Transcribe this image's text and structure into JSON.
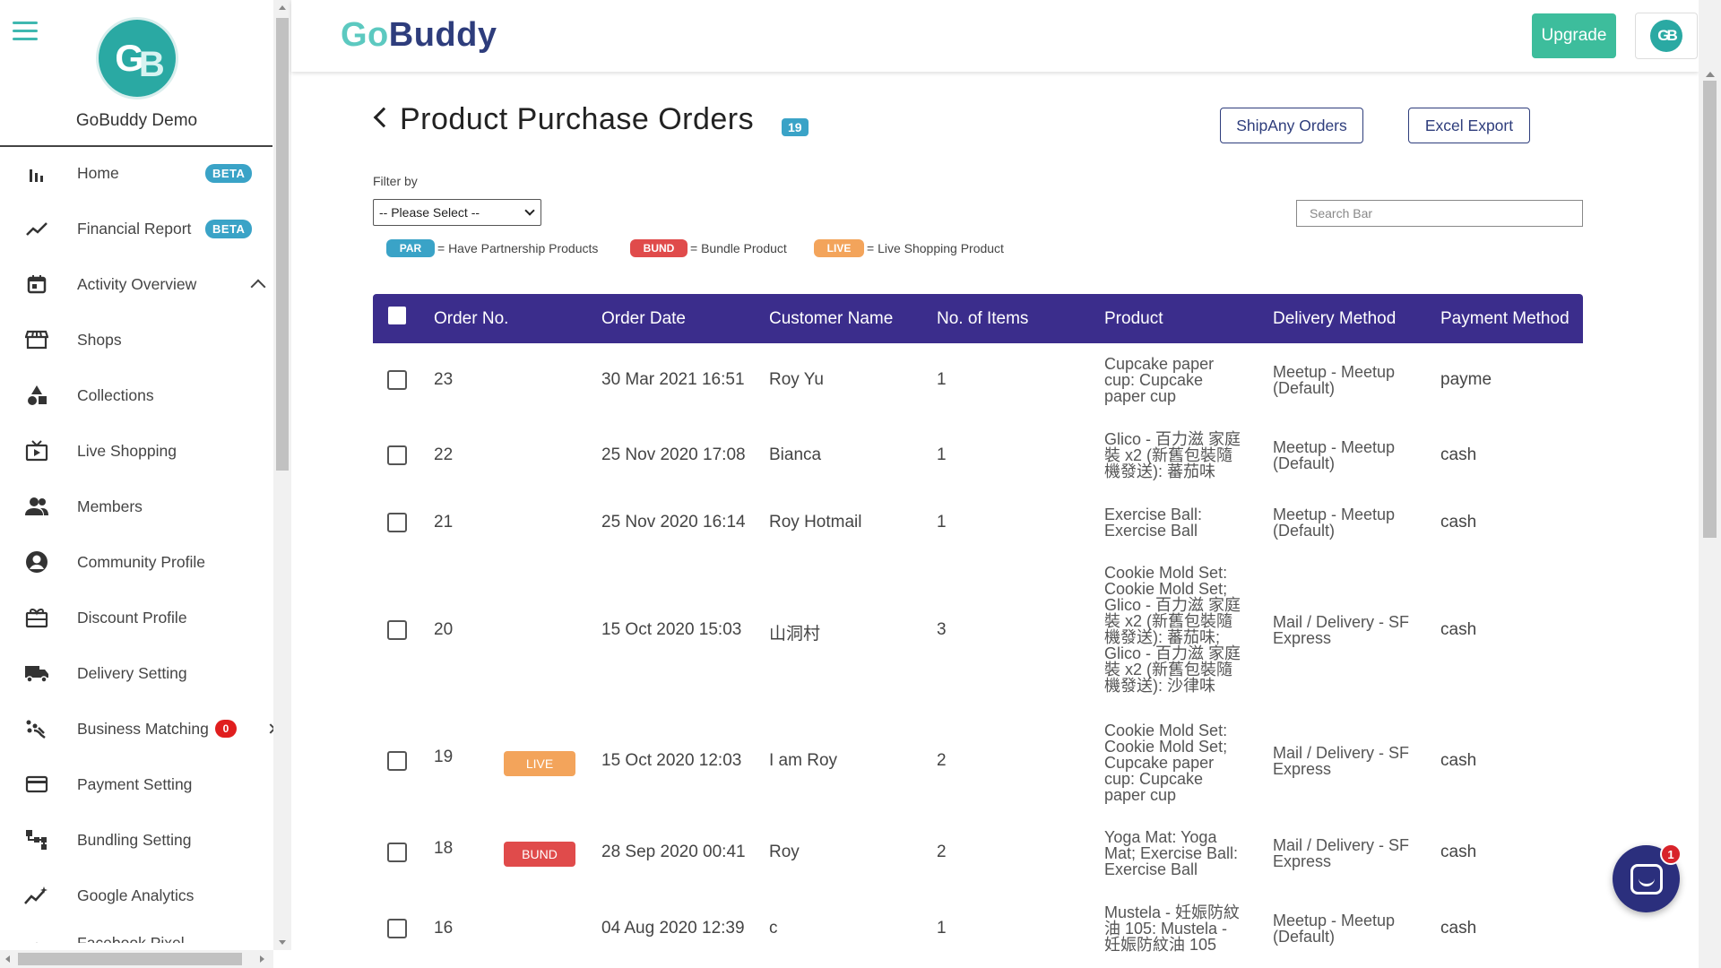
{
  "sidebar": {
    "profile_initials": "GB",
    "profile_name": "GoBuddy Demo",
    "items": [
      {
        "label": "Home",
        "icon": "bar-chart-icon",
        "badge": "BETA"
      },
      {
        "label": "Financial Report",
        "icon": "trend-line-icon",
        "badge": "BETA"
      },
      {
        "label": "Activity Overview",
        "icon": "calendar-icon"
      },
      {
        "label": "Shops",
        "icon": "storefront-icon"
      },
      {
        "label": "Collections",
        "icon": "shapes-icon"
      },
      {
        "label": "Live Shopping",
        "icon": "live-tv-icon"
      },
      {
        "label": "Members",
        "icon": "people-icon"
      },
      {
        "label": "Community Profile",
        "icon": "account-circle-icon"
      },
      {
        "label": "Discount Profile",
        "icon": "gift-card-icon"
      },
      {
        "label": "Delivery Setting",
        "icon": "truck-icon"
      },
      {
        "label": "Business Matching",
        "icon": "network-icon",
        "count": "0"
      },
      {
        "label": "Payment Setting",
        "icon": "credit-card-icon"
      },
      {
        "label": "Bundling Setting",
        "icon": "hierarchy-icon"
      },
      {
        "label": "Google Analytics",
        "icon": "analytics-icon"
      },
      {
        "label": "Facebook Pixel",
        "icon": "sparkle-icon"
      }
    ]
  },
  "header": {
    "logo_go": "Go",
    "logo_buddy": "Buddy",
    "upgrade_label": "Upgrade",
    "user_initials": "GB"
  },
  "page": {
    "title": "Product Purchase Orders",
    "count": "19",
    "shipany_label": "ShipAny Orders",
    "excel_label": "Excel Export",
    "filter_label": "Filter by",
    "filter_value": "-- Please Select --",
    "search_placeholder": "Search Bar",
    "legend": [
      {
        "tag": "PAR",
        "text": "= Have Partnership Products"
      },
      {
        "tag": "BUND",
        "text": "= Bundle Product"
      },
      {
        "tag": "LIVE",
        "text": "= Live Shopping Product"
      }
    ]
  },
  "table": {
    "columns": [
      "Order No.",
      "Order Date",
      "Customer Name",
      "No. of Items",
      "Product",
      "Delivery Method",
      "Payment Method"
    ],
    "rows": [
      {
        "order": "23",
        "tag": "",
        "date": "30 Mar 2021 16:51",
        "customer": "Roy Yu",
        "items": "1",
        "product": "Cupcake paper cup: Cupcake paper cup",
        "delivery": "Meetup - Meetup (Default)",
        "payment": "payme"
      },
      {
        "order": "22",
        "tag": "",
        "date": "25 Nov 2020 17:08",
        "customer": "Bianca",
        "items": "1",
        "product": "Glico - 百力滋 家庭裝 x2 (新舊包裝隨機發送): 蕃茄味",
        "delivery": "Meetup - Meetup (Default)",
        "payment": "cash"
      },
      {
        "order": "21",
        "tag": "",
        "date": "25 Nov 2020 16:14",
        "customer": "Roy Hotmail",
        "items": "1",
        "product": "Exercise Ball: Exercise Ball",
        "delivery": "Meetup - Meetup (Default)",
        "payment": "cash"
      },
      {
        "order": "20",
        "tag": "",
        "date": "15 Oct 2020 15:03",
        "customer": "山洞村",
        "items": "3",
        "product": "Cookie Mold Set: Cookie Mold Set; Glico - 百力滋 家庭裝 x2 (新舊包裝隨機發送): 蕃茄味; Glico - 百力滋 家庭裝 x2 (新舊包裝隨機發送): 沙律味",
        "delivery": "Mail / Delivery - SF Express",
        "payment": "cash"
      },
      {
        "order": "19",
        "tag": "LIVE",
        "date": "15 Oct 2020 12:03",
        "customer": "I am Roy",
        "items": "2",
        "product": "Cookie Mold Set: Cookie Mold Set; Cupcake paper cup: Cupcake paper cup",
        "delivery": "Mail / Delivery - SF Express",
        "payment": "cash"
      },
      {
        "order": "18",
        "tag": "BUND",
        "date": "28 Sep 2020 00:41",
        "customer": "Roy",
        "items": "2",
        "product": "Yoga Mat: Yoga Mat; Exercise Ball: Exercise Ball",
        "delivery": "Mail / Delivery - SF Express",
        "payment": "cash"
      },
      {
        "order": "16",
        "tag": "",
        "date": "04 Aug 2020 12:39",
        "customer": "c",
        "items": "1",
        "product": "Mustela - 妊娠防紋油 105: Mustela - 妊娠防紋油 105",
        "delivery": "Meetup - Meetup (Default)",
        "payment": "cash"
      }
    ]
  },
  "chat": {
    "badge": "1"
  },
  "colors": {
    "brand_teal": "#5cc9c0",
    "brand_navy": "#2e3d7c",
    "table_header": "#3b2d8c",
    "upgrade": "#3dbd9c",
    "par": "#3aa3c7",
    "bund": "#e04b4b",
    "live": "#f3a45b"
  }
}
